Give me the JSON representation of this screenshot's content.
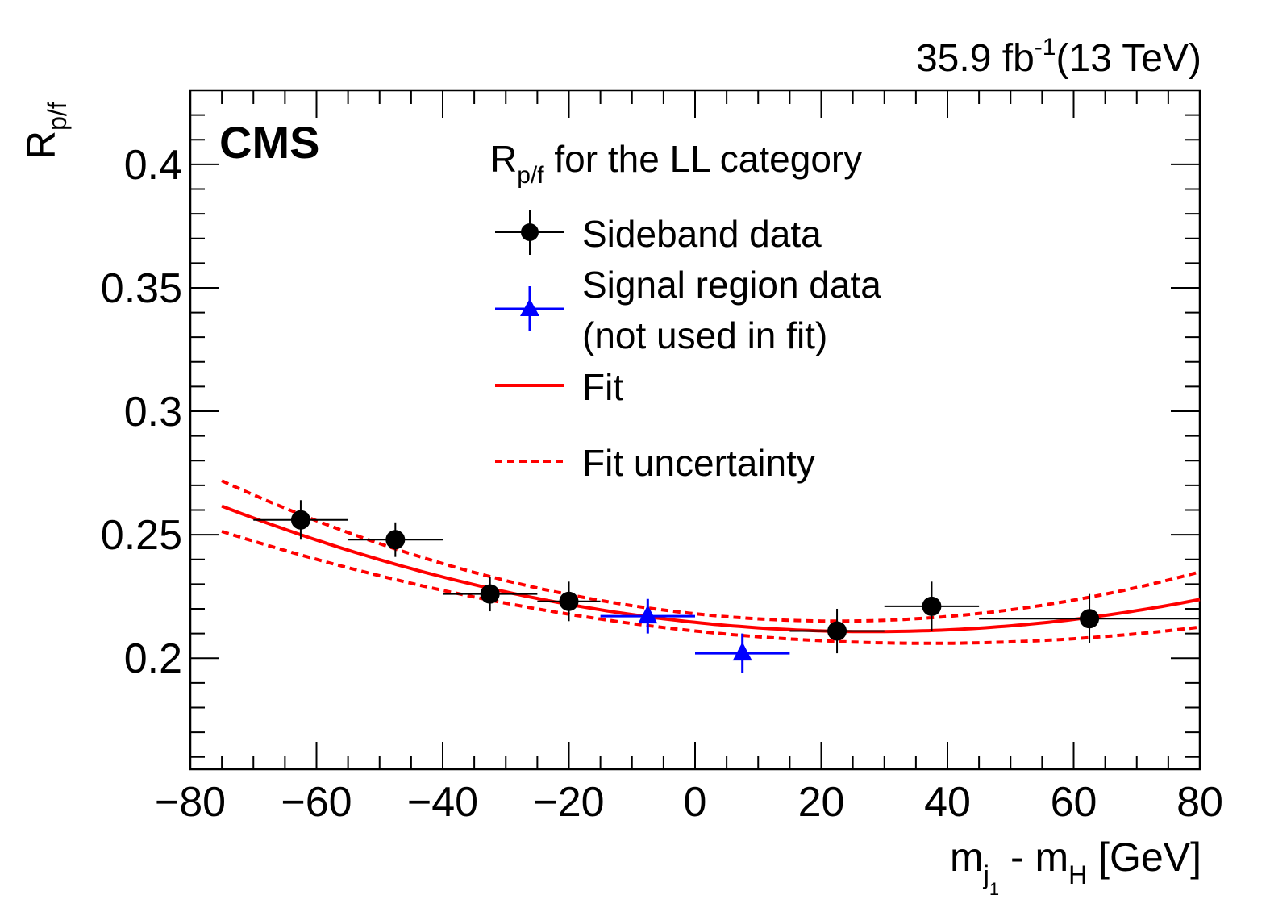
{
  "chart_data": {
    "type": "scatter",
    "lumi": {
      "value": "35.9 fb",
      "sup": "-1",
      "energy": "(13 TeV)"
    },
    "cms_label": "CMS",
    "ylabel": {
      "main": "R",
      "sub": "p/f"
    },
    "xlabel": {
      "m1": "m",
      "m1_sub": "j",
      "m1_subsub": "1",
      "middle": " - m",
      "m2_sub": "H",
      "unit": " [GeV]"
    },
    "xlim": [
      -80,
      80
    ],
    "ylim": [
      0.155,
      0.43
    ],
    "x_ticks": [
      -80,
      -60,
      -40,
      -20,
      0,
      20,
      40,
      60,
      80
    ],
    "x_tick_labels": [
      "−80",
      "−60",
      "−40",
      "−20",
      "0",
      "20",
      "40",
      "60",
      "80"
    ],
    "y_ticks": [
      0.2,
      0.25,
      0.3,
      0.35,
      0.4
    ],
    "y_tick_labels": [
      "0.2",
      "0.25",
      "0.3",
      "0.35",
      "0.4"
    ],
    "legend": {
      "header_main": "R",
      "header_sub": "p/f",
      "header_rest": " for the LL category",
      "sideband": "Sideband data",
      "signal_line1": "Signal region data",
      "signal_line2": "(not used in fit)",
      "fit": "Fit",
      "uncertainty": "Fit uncertainty"
    },
    "colors": {
      "sideband": "#000000",
      "signal": "#0000ff",
      "fit": "#ff0000"
    },
    "series": [
      {
        "name": "Sideband data",
        "points": [
          {
            "x": -62.5,
            "y": 0.256,
            "xerr": 7.5,
            "yerr": 0.008
          },
          {
            "x": -47.5,
            "y": 0.248,
            "xerr": 7.5,
            "yerr": 0.007
          },
          {
            "x": -32.5,
            "y": 0.226,
            "xerr": 7.5,
            "yerr": 0.007
          },
          {
            "x": -20.0,
            "y": 0.223,
            "xerr": 5.0,
            "yerr": 0.008
          },
          {
            "x": 22.5,
            "y": 0.211,
            "xerr": 7.5,
            "yerr": 0.009
          },
          {
            "x": 37.5,
            "y": 0.221,
            "xerr": 7.5,
            "yerr": 0.01
          },
          {
            "x": 62.5,
            "y": 0.216,
            "xerr": 17.5,
            "yerr": 0.01
          }
        ]
      },
      {
        "name": "Signal region data",
        "points": [
          {
            "x": -7.5,
            "y": 0.217,
            "xerr": 7.5,
            "yerr": 0.007
          },
          {
            "x": 7.5,
            "y": 0.202,
            "xerr": 7.5,
            "yerr": 0.008
          }
        ]
      }
    ],
    "fit": {
      "x_range": [
        -75,
        80
      ],
      "coeffs": [
        0.2145,
        -0.000268,
        4.8e-06
      ],
      "unc_coeffs": [
        0.0035,
        0.0,
        1.2e-06
      ]
    }
  }
}
